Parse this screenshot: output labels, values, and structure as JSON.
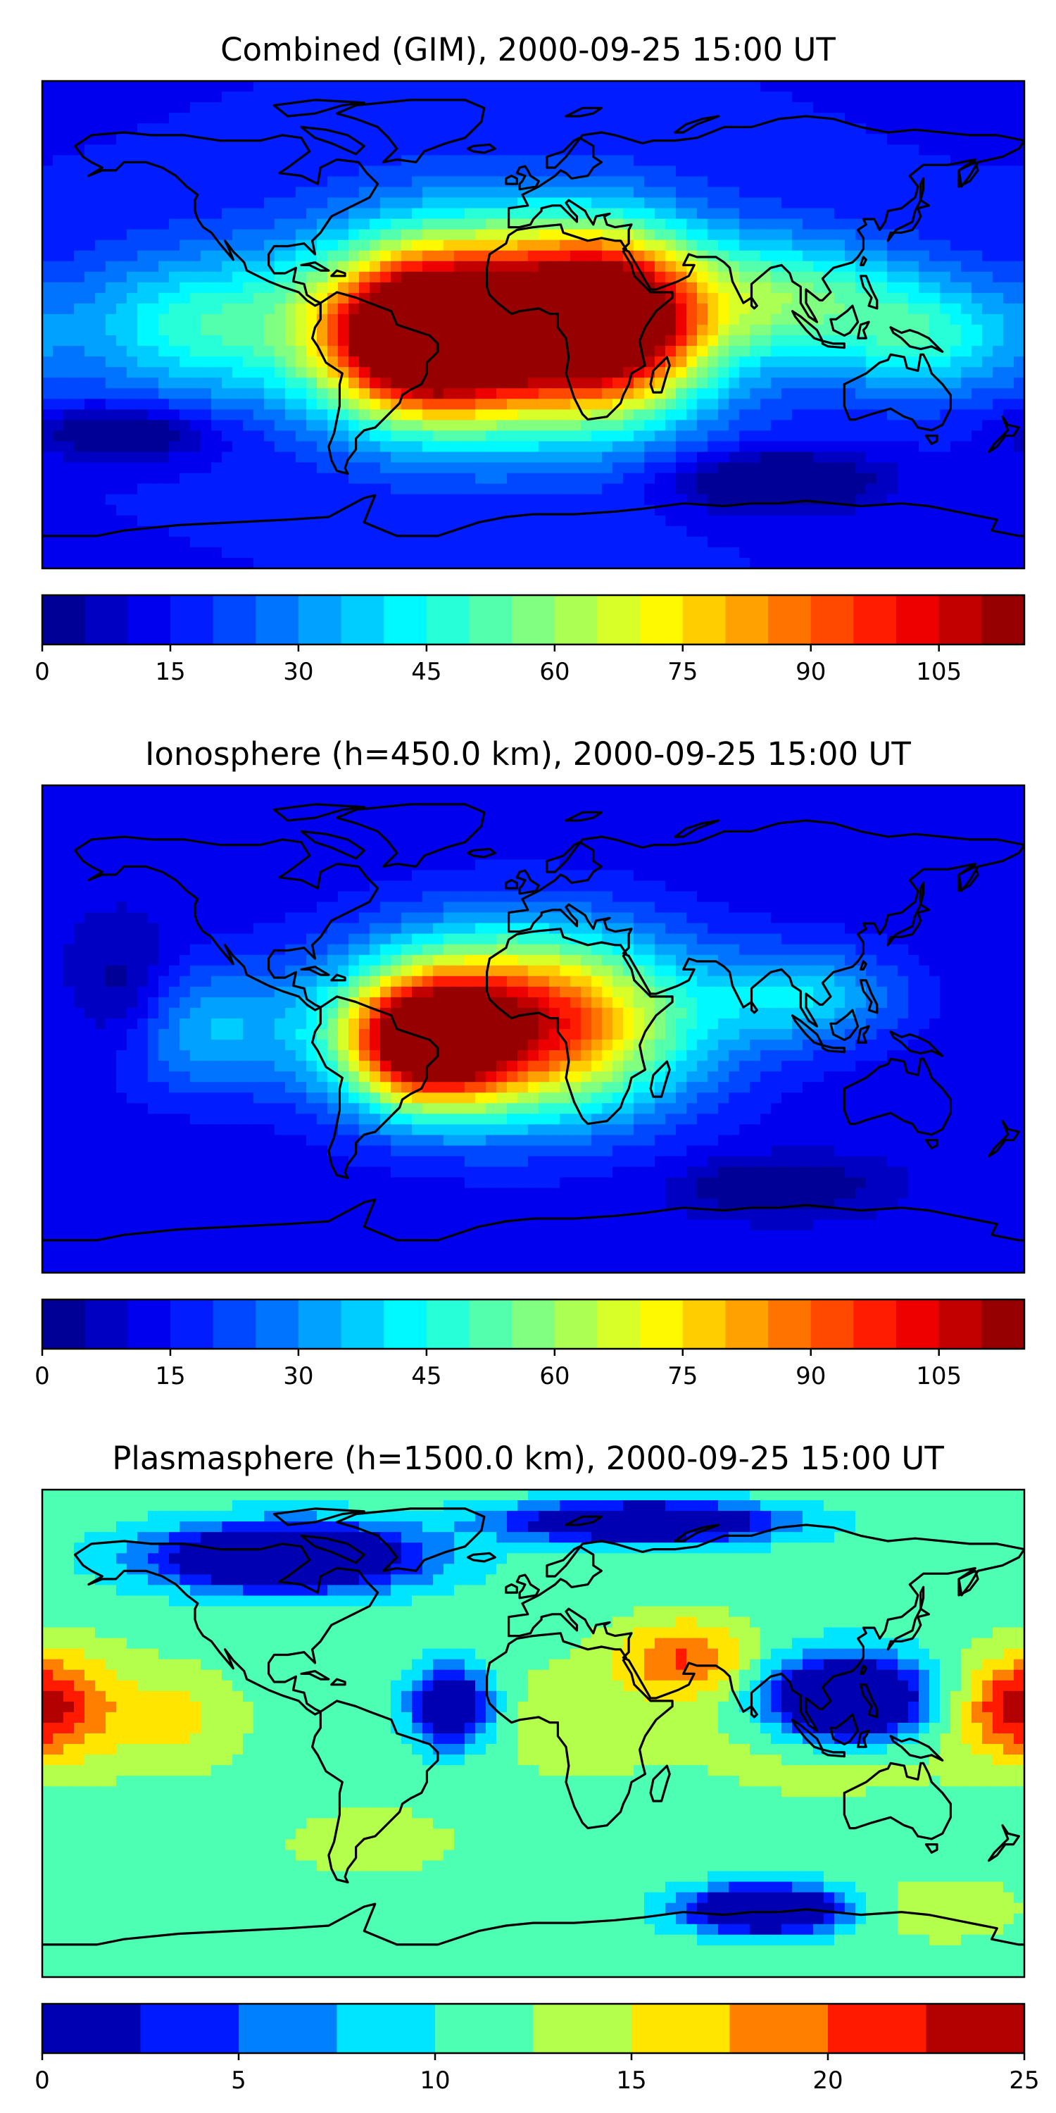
{
  "panels": [
    {
      "title": "Combined (GIM), 2000-09-25 15:00 UT",
      "colorbar": {
        "min": 0,
        "max": 115,
        "levels": 23,
        "ticks": [
          "0",
          "15",
          "30",
          "45",
          "60",
          "75",
          "90",
          "105"
        ],
        "tick_values": [
          0,
          15,
          30,
          45,
          60,
          75,
          90,
          105
        ]
      },
      "blobs": [
        {
          "lon": -10,
          "lat": 0,
          "r": 85,
          "level": 0.99,
          "sy": 0.55
        },
        {
          "lon": -42,
          "lat": -5,
          "r": 40,
          "level": 0.85,
          "sy": 0.8
        },
        {
          "lon": 28,
          "lat": 2,
          "r": 40,
          "level": 0.75,
          "sy": 0.9
        },
        {
          "lon": 95,
          "lat": 10,
          "r": 55,
          "level": 0.42,
          "sy": 0.5
        },
        {
          "lon": 145,
          "lat": -5,
          "r": 45,
          "level": 0.38,
          "sy": 0.6
        },
        {
          "lon": -125,
          "lat": 0,
          "r": 55,
          "level": 0.38,
          "sy": 0.6
        }
      ],
      "base": 0.13,
      "lows": [
        {
          "lon": 90,
          "lat": -58,
          "r": 45,
          "level": -0.1,
          "sy": 0.3
        },
        {
          "lon": -150,
          "lat": -40,
          "r": 40,
          "level": -0.05,
          "sy": 0.3
        }
      ]
    },
    {
      "title": "Ionosphere  (h=450.0 km), 2000-09-25 15:00 UT",
      "colorbar": {
        "min": 0,
        "max": 115,
        "levels": 23,
        "ticks": [
          "0",
          "15",
          "30",
          "45",
          "60",
          "75",
          "90",
          "105"
        ],
        "tick_values": [
          0,
          15,
          30,
          45,
          60,
          75,
          90,
          105
        ]
      },
      "blobs": [
        {
          "lon": -5,
          "lat": 2,
          "r": 75,
          "level": 0.92,
          "sy": 0.55
        },
        {
          "lon": -40,
          "lat": -5,
          "r": 35,
          "level": 0.78,
          "sy": 0.8
        },
        {
          "lon": 100,
          "lat": 12,
          "r": 45,
          "level": 0.32,
          "sy": 0.5
        },
        {
          "lon": -125,
          "lat": 0,
          "r": 50,
          "level": 0.3,
          "sy": 0.6
        }
      ],
      "base": 0.1,
      "lows": [
        {
          "lon": -150,
          "lat": 10,
          "r": 25,
          "level": -0.05,
          "sy": 1.2
        },
        {
          "lon": 90,
          "lat": -58,
          "r": 40,
          "level": -0.05,
          "sy": 0.3
        }
      ]
    },
    {
      "title": "Plasmasphere (h=1500.0 km), 2000-09-25 15:00 UT",
      "colorbar": {
        "min": 0,
        "max": 25,
        "levels": 10,
        "ticks": [
          "0",
          "5",
          "10",
          "15",
          "20",
          "25"
        ],
        "tick_values": [
          0,
          5,
          10,
          15,
          20,
          25
        ]
      },
      "blobs": [
        {
          "lon": 55,
          "lat": 28,
          "r": 30,
          "level": 0.8,
          "sy": 0.6
        },
        {
          "lon": -175,
          "lat": 10,
          "r": 35,
          "level": 0.72,
          "sy": 0.8
        },
        {
          "lon": 178,
          "lat": 10,
          "r": 25,
          "level": 0.72,
          "sy": 0.8
        },
        {
          "lon": -130,
          "lat": 5,
          "r": 30,
          "level": 0.62,
          "sy": 0.8
        },
        {
          "lon": 15,
          "lat": 5,
          "r": 50,
          "level": 0.55,
          "sy": 0.6
        },
        {
          "lon": 110,
          "lat": -5,
          "r": 60,
          "level": 0.58,
          "sy": 0.4
        },
        {
          "lon": -60,
          "lat": -40,
          "r": 45,
          "level": 0.55,
          "sy": 0.4
        },
        {
          "lon": 150,
          "lat": -65,
          "r": 35,
          "level": 0.6,
          "sy": 0.4
        }
      ],
      "base": 0.45,
      "lows": [
        {
          "lon": 115,
          "lat": 12,
          "r": 35,
          "level": -0.45,
          "sy": 0.55
        },
        {
          "lon": 85,
          "lat": -65,
          "r": 35,
          "level": -0.35,
          "sy": 0.3
        },
        {
          "lon": -90,
          "lat": 65,
          "r": 60,
          "level": -0.35,
          "sy": 0.25
        },
        {
          "lon": 40,
          "lat": 78,
          "r": 60,
          "level": -0.3,
          "sy": 0.15
        },
        {
          "lon": -30,
          "lat": 10,
          "r": 18,
          "level": -0.2,
          "sy": 1.0
        }
      ]
    }
  ],
  "colormap": "jet"
}
